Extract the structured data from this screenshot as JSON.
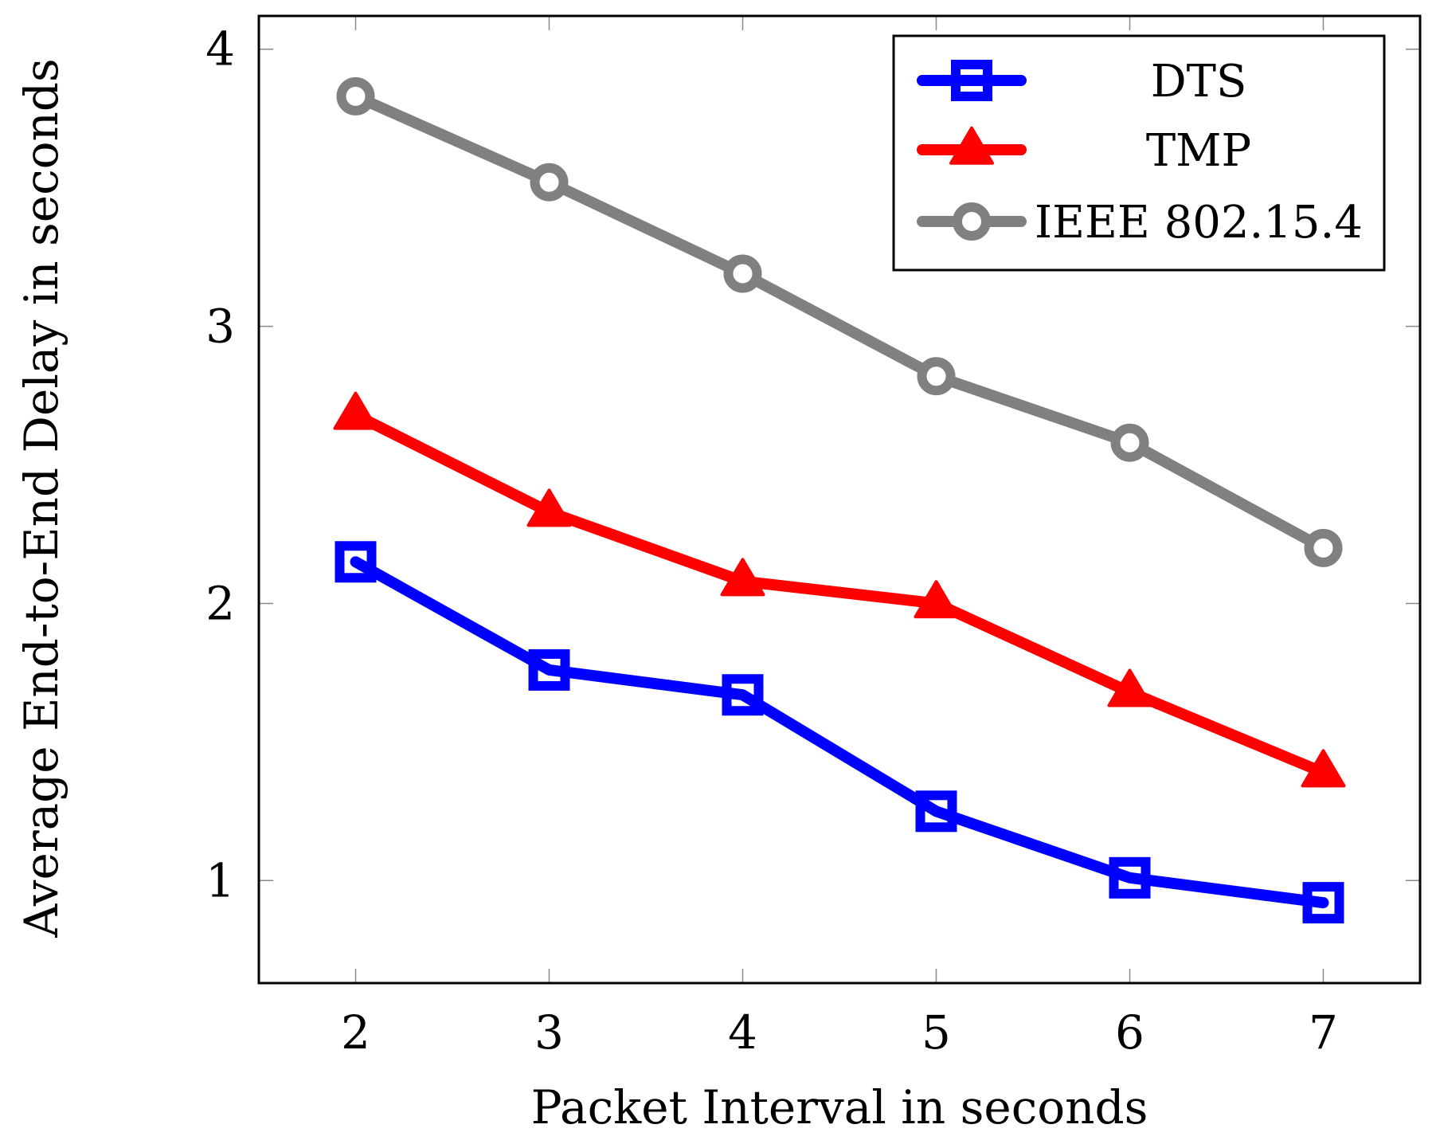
{
  "chart_data": {
    "type": "line",
    "title": "",
    "xlabel": "Packet Interval in seconds",
    "ylabel": "Average End-to-End Delay in seconds",
    "x": [
      2,
      3,
      4,
      5,
      6,
      7
    ],
    "xlim": [
      1.5,
      7.5
    ],
    "ylim": [
      0.63,
      4.12
    ],
    "xticks": [
      "2",
      "3",
      "4",
      "5",
      "6",
      "7"
    ],
    "yticks": [
      "1",
      "2",
      "3",
      "4"
    ],
    "grid": false,
    "legend_position": "top-right",
    "series": [
      {
        "name": "DTS",
        "marker": "square",
        "color": "#0000ff",
        "values": [
          2.15,
          1.76,
          1.67,
          1.25,
          1.01,
          0.92
        ]
      },
      {
        "name": "TMP",
        "marker": "triangle",
        "color": "#ff0000",
        "values": [
          2.68,
          2.33,
          2.08,
          2.0,
          1.68,
          1.39
        ]
      },
      {
        "name": "IEEE 802.15.4",
        "marker": "circle",
        "color": "#808080",
        "values": [
          3.83,
          3.52,
          3.19,
          2.82,
          2.58,
          2.2
        ]
      }
    ]
  }
}
